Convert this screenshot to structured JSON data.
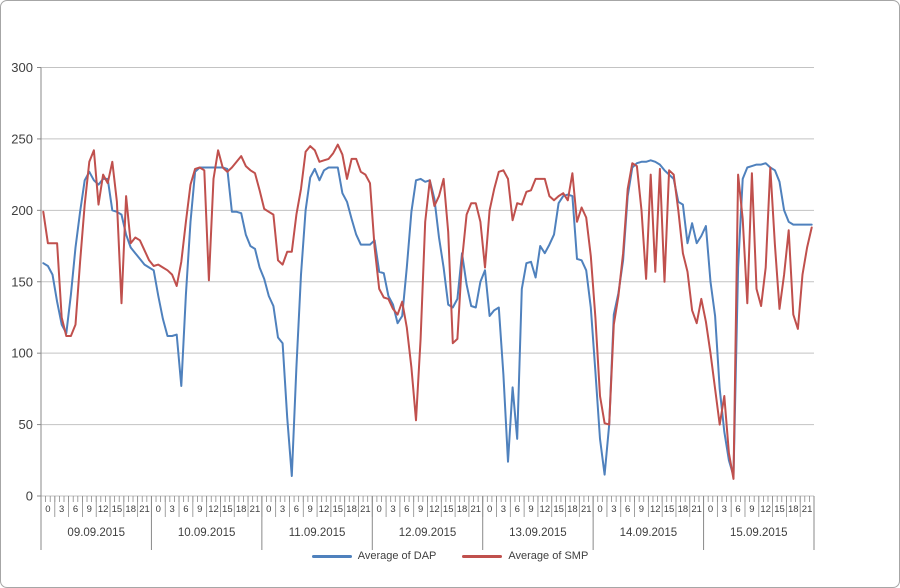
{
  "chart_data": {
    "type": "line",
    "title": "",
    "grid": true,
    "legend_position": "bottom-center",
    "y_axis": {
      "min": 0,
      "max": 300,
      "tick_step": 50,
      "tick_labels": [
        "0",
        "50",
        "100",
        "150",
        "200",
        "250",
        "300"
      ]
    },
    "x_axis": {
      "hours_per_day": 24,
      "label_every_hours": 3,
      "hour_tick_labels": [
        "0",
        "3",
        "6",
        "9",
        "12",
        "15",
        "18",
        "21"
      ],
      "day_labels": [
        "09.09.2015",
        "10.09.2015",
        "11.09.2015",
        "12.09.2015",
        "13.09.2015",
        "14.09.2015",
        "15.09.2015"
      ]
    },
    "series": [
      {
        "name": "Average of DAP",
        "color": "#4F81BD",
        "values": [
          163,
          161,
          155,
          136,
          120,
          114,
          141,
          174,
          199,
          221,
          227,
          221,
          218,
          222,
          222,
          200,
          199,
          197,
          183,
          174,
          170,
          166,
          162,
          160,
          158,
          140,
          124,
          112,
          112,
          113,
          77,
          141,
          192,
          227,
          230,
          230,
          230,
          230,
          230,
          230,
          229,
          199,
          199,
          198,
          183,
          175,
          173,
          160,
          152,
          140,
          133,
          111,
          107,
          55,
          14,
          90,
          155,
          200,
          223,
          229,
          221,
          228,
          230,
          230,
          230,
          212,
          206,
          194,
          183,
          176,
          176,
          176,
          179,
          157,
          156,
          140,
          134,
          121,
          126,
          160,
          199,
          221,
          222,
          220,
          221,
          208,
          181,
          160,
          134,
          132,
          138,
          170,
          148,
          133,
          132,
          150,
          158,
          126,
          130,
          132,
          85,
          24,
          76,
          40,
          145,
          163,
          164,
          153,
          175,
          170,
          176,
          183,
          205,
          210,
          211,
          210,
          166,
          165,
          158,
          132,
          87,
          40,
          15,
          50,
          127,
          142,
          165,
          210,
          230,
          233,
          234,
          234,
          235,
          234,
          232,
          228,
          225,
          222,
          206,
          204,
          177,
          191,
          177,
          182,
          189,
          150,
          126,
          75,
          45,
          25,
          14,
          160,
          222,
          230,
          231,
          232,
          232,
          233,
          230,
          228,
          220,
          200,
          192,
          190,
          190,
          190,
          190,
          190
        ]
      },
      {
        "name": "Average of SMP",
        "color": "#C0504D",
        "values": [
          199,
          177,
          177,
          177,
          125,
          112,
          112,
          120,
          164,
          204,
          234,
          242,
          204,
          225,
          219,
          234,
          206,
          135,
          210,
          177,
          181,
          179,
          172,
          165,
          161,
          162,
          160,
          158,
          155,
          147,
          164,
          192,
          218,
          229,
          230,
          228,
          151,
          222,
          242,
          230,
          227,
          230,
          234,
          238,
          231,
          228,
          226,
          214,
          201,
          199,
          197,
          165,
          162,
          171,
          171,
          197,
          215,
          241,
          245,
          242,
          234,
          235,
          236,
          240,
          246,
          239,
          222,
          236,
          236,
          227,
          225,
          219,
          174,
          145,
          139,
          138,
          131,
          127,
          136,
          118,
          90,
          53,
          110,
          192,
          221,
          203,
          210,
          222,
          185,
          107,
          110,
          165,
          197,
          205,
          205,
          192,
          160,
          200,
          215,
          227,
          228,
          222,
          193,
          205,
          204,
          213,
          214,
          222,
          222,
          222,
          210,
          207,
          210,
          212,
          207,
          226,
          192,
          202,
          195,
          168,
          125,
          70,
          51,
          50,
          120,
          140,
          170,
          215,
          233,
          231,
          200,
          152,
          225,
          157,
          229,
          150,
          228,
          225,
          200,
          170,
          157,
          130,
          121,
          138,
          122,
          100,
          75,
          50,
          70,
          30,
          12,
          225,
          194,
          135,
          226,
          145,
          133,
          160,
          230,
          176,
          131,
          155,
          186,
          127,
          117,
          155,
          174,
          188
        ]
      }
    ]
  },
  "colors": {
    "gridline": "#c3c3c3",
    "axis": "#898989",
    "tick": "#898989",
    "label_text": "#3f3f3f",
    "frame_border": "#a6a6a6",
    "background": "#ffffff"
  }
}
